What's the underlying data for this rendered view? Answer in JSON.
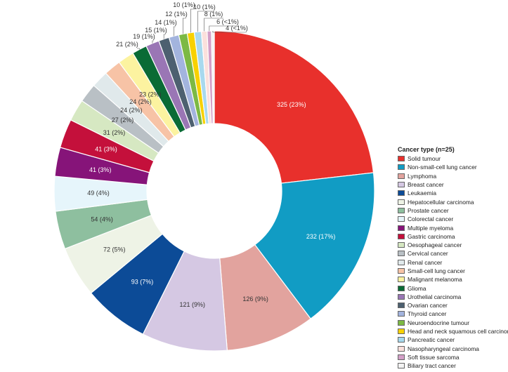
{
  "chart_data": {
    "type": "pie",
    "variant": "donut",
    "legend_title": "Cancer type (n=25)",
    "legend_position": "right",
    "slices": [
      {
        "name": "Solid tumour",
        "value": 325,
        "label": "325 (23%)",
        "color": "#e8302c",
        "label_color": "#ffffff"
      },
      {
        "name": "Non-small-cell lung cancer",
        "value": 232,
        "label": "232 (17%)",
        "color": "#119cc4",
        "label_color": "#ffffff"
      },
      {
        "name": "Lymphoma",
        "value": 126,
        "label": "126 (9%)",
        "color": "#e2a39e",
        "label_color": "#333333"
      },
      {
        "name": "Breast cancer",
        "value": 121,
        "label": "121 (9%)",
        "color": "#d5c8e3",
        "label_color": "#333333"
      },
      {
        "name": "Leukaemia",
        "value": 93,
        "label": "93 (7%)",
        "color": "#0c4b97",
        "label_color": "#ffffff"
      },
      {
        "name": "Hepatocellular carcinoma",
        "value": 72,
        "label": "72 (5%)",
        "color": "#eef3e6",
        "label_color": "#333333"
      },
      {
        "name": "Prostate cancer",
        "value": 54,
        "label": "54 (4%)",
        "color": "#8ebf9f",
        "label_color": "#333333"
      },
      {
        "name": "Colorectal cancer",
        "value": 49,
        "label": "49 (4%)",
        "color": "#e6f5fb",
        "label_color": "#333333"
      },
      {
        "name": "Multiple myeloma",
        "value": 41,
        "label": "41 (3%)",
        "color": "#861479",
        "label_color": "#ffffff"
      },
      {
        "name": "Gastric carcinoma",
        "value": 41,
        "label": "41 (3%)",
        "color": "#c4103b",
        "label_color": "#ffffff"
      },
      {
        "name": "Oesophageal cancer",
        "value": 31,
        "label": "31 (2%)",
        "color": "#d6e8c2",
        "label_color": "#333333"
      },
      {
        "name": "Cervical cancer",
        "value": 27,
        "label": "27 (2%)",
        "color": "#b9c0c5",
        "label_color": "#333333"
      },
      {
        "name": "Renal cancer",
        "value": 24,
        "label": "24 (2%)",
        "color": "#e0e9eb",
        "label_color": "#333333"
      },
      {
        "name": "Small-cell lung cancer",
        "value": 24,
        "label": "24 (2%)",
        "color": "#f7c3a6",
        "label_color": "#333333"
      },
      {
        "name": "Malignant melanoma",
        "value": 23,
        "label": "23 (2%)",
        "color": "#fcf3a0",
        "label_color": "#333333"
      },
      {
        "name": "Glioma",
        "value": 21,
        "label": "21 (2%)",
        "color": "#0a6b35",
        "label_color": "#333333"
      },
      {
        "name": "Urothelial carcinoma",
        "value": 19,
        "label": "19 (1%)",
        "color": "#9a76b5",
        "label_color": "#333333"
      },
      {
        "name": "Ovarian cancer",
        "value": 15,
        "label": "15 (1%)",
        "color": "#4d6070",
        "label_color": "#333333"
      },
      {
        "name": "Thyroid cancer",
        "value": 14,
        "label": "14 (1%)",
        "color": "#a3b4de",
        "label_color": "#333333"
      },
      {
        "name": "Neuroendocrine tumour",
        "value": 12,
        "label": "12 (1%)",
        "color": "#7cb944",
        "label_color": "#333333"
      },
      {
        "name": "Head and neck squamous cell carcinoma",
        "value": 10,
        "label": "10 (1%)",
        "color": "#f8d100",
        "label_color": "#333333"
      },
      {
        "name": "Pancreatic cancer",
        "value": 10,
        "label": "10 (1%)",
        "color": "#a8d9ee",
        "label_color": "#333333"
      },
      {
        "name": "Nasopharyngeal carcinoma",
        "value": 8,
        "label": "8 (1%)",
        "color": "#fbe0dc",
        "label_color": "#333333"
      },
      {
        "name": "Soft tissue sarcoma",
        "value": 6,
        "label": "6 (<1%)",
        "color": "#d39fc7",
        "label_color": "#333333"
      },
      {
        "name": "Biliary tract cancer",
        "value": 4,
        "label": "4 (<1%)",
        "color": "#f3f3f3",
        "label_color": "#333333"
      }
    ]
  }
}
